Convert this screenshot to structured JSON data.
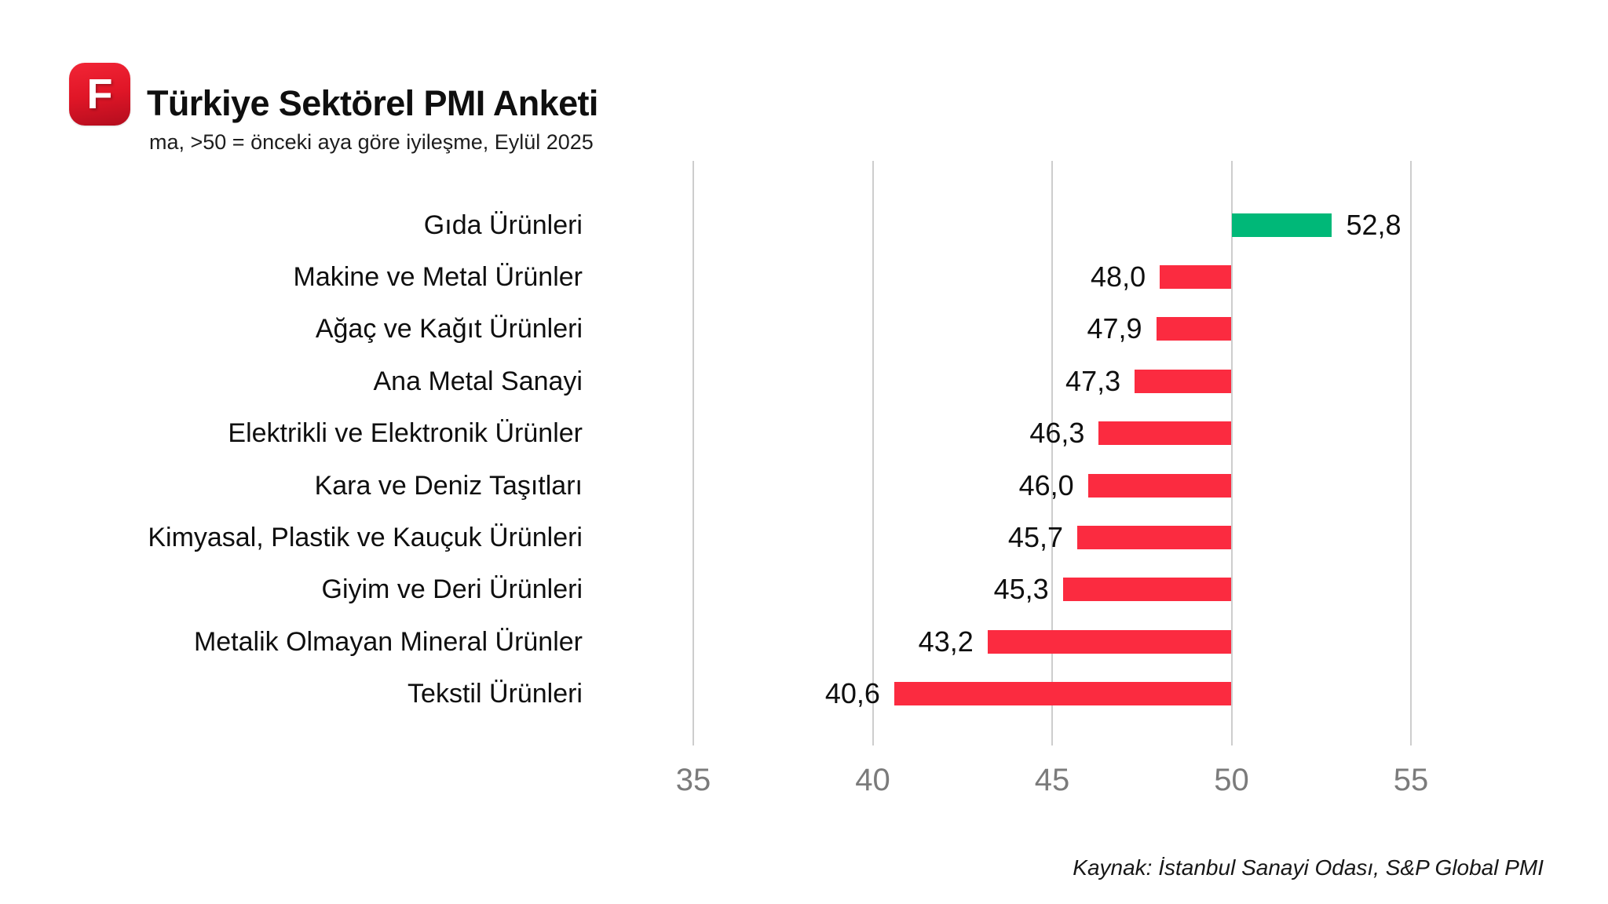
{
  "header": {
    "logo_letter": "F",
    "title": "Türkiye Sektörel PMI Anketi",
    "subtitle": "ma, >50 = önceki aya göre iyileşme, Eylül 2025"
  },
  "chart_data": {
    "type": "bar",
    "orientation": "horizontal",
    "baseline": 50,
    "categories": [
      "Gıda Ürünleri",
      "Makine ve Metal Ürünler",
      "Ağaç ve Kağıt Ürünleri",
      "Ana Metal Sanayi",
      "Elektrikli ve Elektronik Ürünler",
      "Kara ve Deniz Taşıtları",
      "Kimyasal, Plastik ve Kauçuk Ürünleri",
      "Giyim ve Deri Ürünleri",
      "Metalik Olmayan Mineral Ürünler",
      "Tekstil Ürünleri"
    ],
    "values": [
      52.8,
      48.0,
      47.9,
      47.3,
      46.3,
      46.0,
      45.7,
      45.3,
      43.2,
      40.6
    ],
    "value_labels": [
      "52,8",
      "48,0",
      "47,9",
      "47,3",
      "46,3",
      "46,0",
      "45,7",
      "45,3",
      "43,2",
      "40,6"
    ],
    "x_ticks": [
      35,
      40,
      45,
      50,
      55
    ],
    "xlim": [
      35,
      55
    ],
    "grid": "vertical-only",
    "legend": "none",
    "colors": {
      "above_baseline": "#00b878",
      "below_baseline": "#fb2b40",
      "gridline": "#cdcdcd",
      "tick_text": "#7b7b7b",
      "label_text": "#0f0f0f"
    }
  },
  "footer": {
    "source": "Kaynak: İstanbul Sanayi Odası, S&P Global PMI"
  }
}
